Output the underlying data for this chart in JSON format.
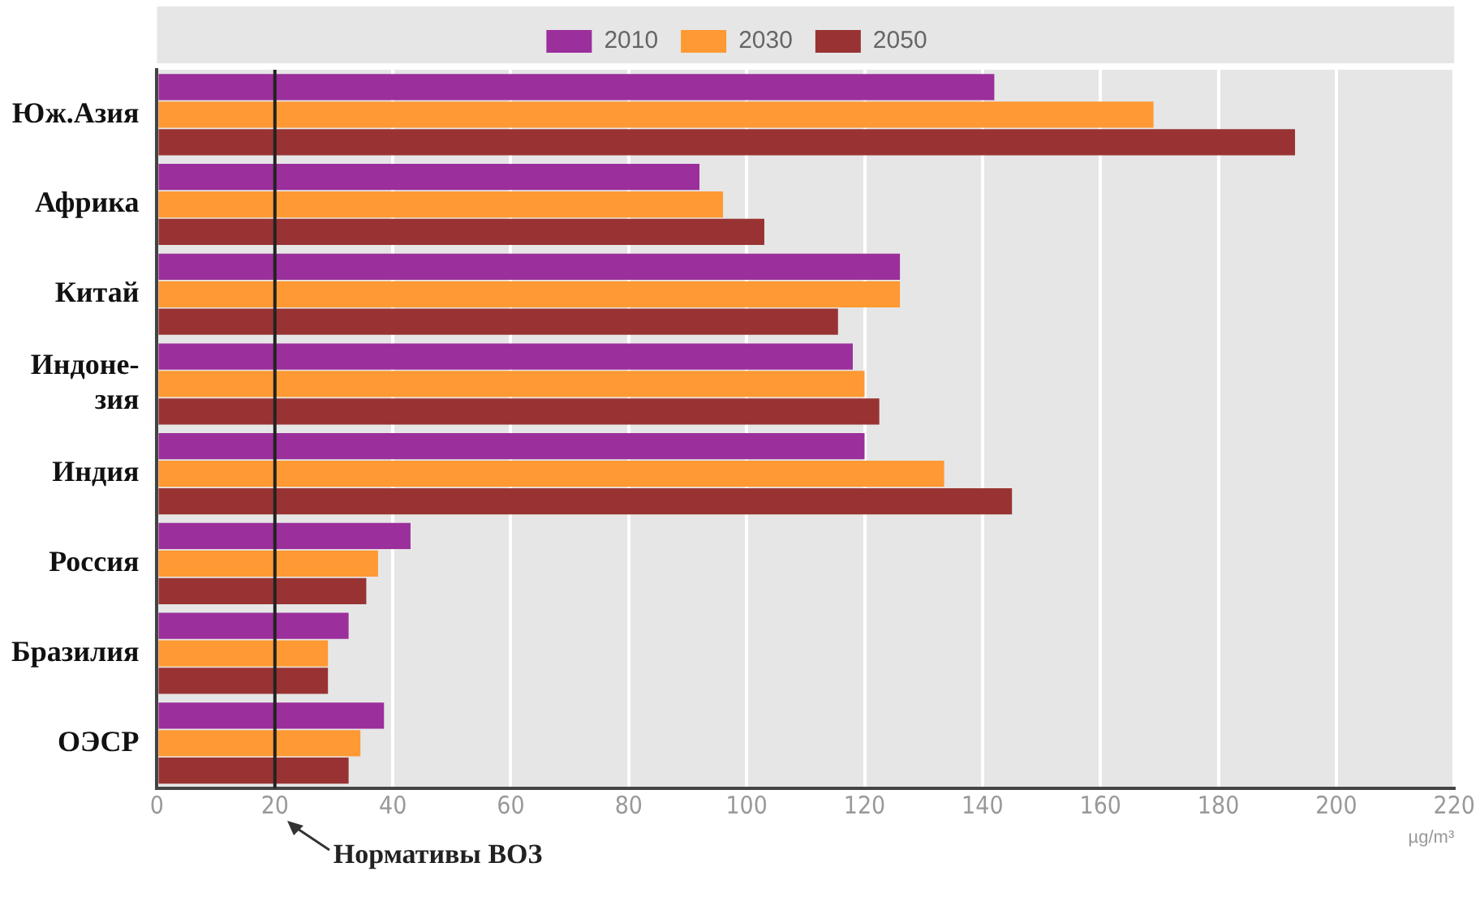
{
  "chart_data": {
    "type": "bar",
    "orientation": "horizontal",
    "categories": [
      "Юж.Азия",
      "Африка",
      "Китай",
      "Индоне-\nзия",
      "Индия",
      "Россия",
      "Бразилия",
      "ОЭСР"
    ],
    "series": [
      {
        "name": "2010",
        "color": "#9b2f9b",
        "values": [
          142,
          92,
          126,
          118,
          120,
          43,
          32.5,
          38.5
        ]
      },
      {
        "name": "2030",
        "color": "#ff9933",
        "values": [
          169,
          96,
          126,
          120,
          133.5,
          37.5,
          29,
          34.5
        ]
      },
      {
        "name": "2050",
        "color": "#993333",
        "values": [
          193,
          103,
          115.5,
          122.5,
          145,
          35.5,
          29,
          32.5
        ]
      }
    ],
    "xlim": [
      0,
      220
    ],
    "xticks": [
      0,
      20,
      40,
      60,
      80,
      100,
      120,
      140,
      160,
      180,
      200,
      220
    ],
    "xlabel": "µg/m³",
    "ref_lines": [
      {
        "axis": "x",
        "value": 20,
        "label": "Нормативы ВОЗ",
        "color": "#222222"
      }
    ],
    "grid": "x",
    "legend": "top"
  }
}
